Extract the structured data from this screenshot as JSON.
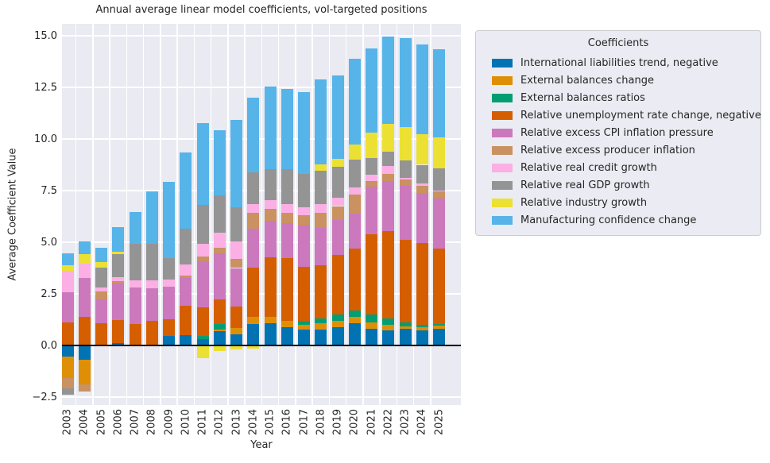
{
  "chart_data": {
    "type": "bar",
    "stacked": true,
    "title": "Annual average linear model coefficients, vol-targeted positions",
    "xlabel": "Year",
    "ylabel": "Average Coefficient Value",
    "ylim": [
      -2.5,
      15.0
    ],
    "grid": true,
    "legend_position": "outside-right",
    "legend_title": "Coefficients",
    "categories": [
      "2003",
      "2004",
      "2005",
      "2006",
      "2007",
      "2008",
      "2009",
      "2010",
      "2011",
      "2012",
      "2013",
      "2014",
      "2015",
      "2016",
      "2017",
      "2018",
      "2019",
      "2020",
      "2021",
      "2022",
      "2023",
      "2024",
      "2025"
    ],
    "y_ticks": [
      {
        "v": 15.0,
        "label": "15.0"
      },
      {
        "v": 12.5,
        "label": "12.5"
      },
      {
        "v": 10.0,
        "label": "10.0"
      },
      {
        "v": 7.5,
        "label": "7.5"
      },
      {
        "v": 5.0,
        "label": "5.0"
      },
      {
        "v": 2.5,
        "label": "2.5"
      },
      {
        "v": 0.0,
        "label": "0.0"
      },
      {
        "v": -2.5,
        "label": "−2.5"
      }
    ],
    "series": [
      {
        "name": "International liabilities trend, negative",
        "color": "#0173b2",
        "values": [
          -0.55,
          -0.71,
          0,
          0.1,
          0,
          0,
          0.45,
          0.51,
          0.32,
          0.7,
          0.55,
          1.03,
          1.09,
          0.87,
          0.78,
          0.78,
          0.9,
          1.06,
          0.8,
          0.74,
          0.8,
          0.74,
          0.82
        ]
      },
      {
        "name": "External balances change",
        "color": "#de8f05",
        "values": [
          -1.03,
          -1.19,
          0,
          0,
          0,
          0,
          0,
          0,
          0,
          0.07,
          0.28,
          0.34,
          0.28,
          0.34,
          0.22,
          0.28,
          0.3,
          0.32,
          0.32,
          0.26,
          0.13,
          0.15,
          0.13
        ]
      },
      {
        "name": "External balances ratios",
        "color": "#029e73",
        "values": [
          0,
          0,
          0,
          0,
          0,
          0,
          0,
          0,
          0.15,
          0.26,
          0,
          0,
          0,
          0,
          0.19,
          0.23,
          0.3,
          0.32,
          0.39,
          0.32,
          0.19,
          0.1,
          0.09
        ]
      },
      {
        "name": "Relative unemployment rate change, negative",
        "color": "#d55e00",
        "values": [
          1.12,
          1.37,
          1.09,
          1.12,
          1.03,
          1.18,
          0.83,
          1.41,
          1.39,
          1.21,
          1.06,
          2.41,
          2.9,
          3.03,
          2.63,
          2.59,
          2.9,
          3.01,
          3.87,
          4.23,
          3.98,
          3.97,
          3.65
        ]
      },
      {
        "name": "Relative excess CPI inflation pressure",
        "color": "#cc78bc",
        "values": [
          1.47,
          1.9,
          1.15,
          1.79,
          1.79,
          1.6,
          1.58,
          1.35,
          2.2,
          2.21,
          1.86,
          1.86,
          1.78,
          1.67,
          1.98,
          1.82,
          1.66,
          1.67,
          2.31,
          2.43,
          2.63,
          2.44,
          2.44
        ]
      },
      {
        "name": "Relative excess producer inflation",
        "color": "#ca9161",
        "values": [
          -0.51,
          -0.35,
          0.38,
          0.1,
          0,
          0,
          0,
          0.13,
          0.23,
          0.29,
          0.45,
          0.77,
          0.58,
          0.53,
          0.52,
          0.72,
          0.69,
          0.92,
          0.26,
          0.32,
          0.32,
          0.32,
          0.32
        ]
      },
      {
        "name": "Relative real credit growth",
        "color": "#fbafe4",
        "values": [
          1.03,
          0.7,
          0.19,
          0.2,
          0.32,
          0.36,
          0.35,
          0.51,
          0.65,
          0.71,
          0.83,
          0.45,
          0.4,
          0.41,
          0.38,
          0.43,
          0.42,
          0.36,
          0.31,
          0.39,
          0.08,
          0.13,
          0.05
        ]
      },
      {
        "name": "Relative real GDP growth",
        "color": "#949494",
        "values": [
          -0.31,
          0,
          0.96,
          1.11,
          1.79,
          1.79,
          1.03,
          1.73,
          1.85,
          1.82,
          1.67,
          1.51,
          1.5,
          1.67,
          1.6,
          1.62,
          1.47,
          1.35,
          0.83,
          0.7,
          0.83,
          0.9,
          1.09
        ]
      },
      {
        "name": "Relative industry growth",
        "color": "#ece133",
        "values": [
          0.26,
          0.45,
          0.26,
          0.13,
          0,
          0,
          0,
          0,
          -0.62,
          -0.25,
          -0.18,
          -0.15,
          0,
          0,
          0,
          0.31,
          0.41,
          0.73,
          1.22,
          1.35,
          1.61,
          1.48,
          1.47
        ]
      },
      {
        "name": "Manufacturing confidence change",
        "color": "#56b4e9",
        "values": [
          0.57,
          0.62,
          0.7,
          1.19,
          1.53,
          2.52,
          3.68,
          3.72,
          3.98,
          3.15,
          4.23,
          3.64,
          4.0,
          3.92,
          3.98,
          4.1,
          4.02,
          4.13,
          4.08,
          4.23,
          4.32,
          4.34,
          4.29
        ]
      }
    ]
  },
  "colors": {
    "figure_bg": "#ffffff",
    "plot_bg": "#eaeaf2",
    "grid": "#ffffff",
    "zero_line": "#000000",
    "text": "#262626",
    "legend_bg": "#ebebf3",
    "legend_border": "#cccccc"
  }
}
